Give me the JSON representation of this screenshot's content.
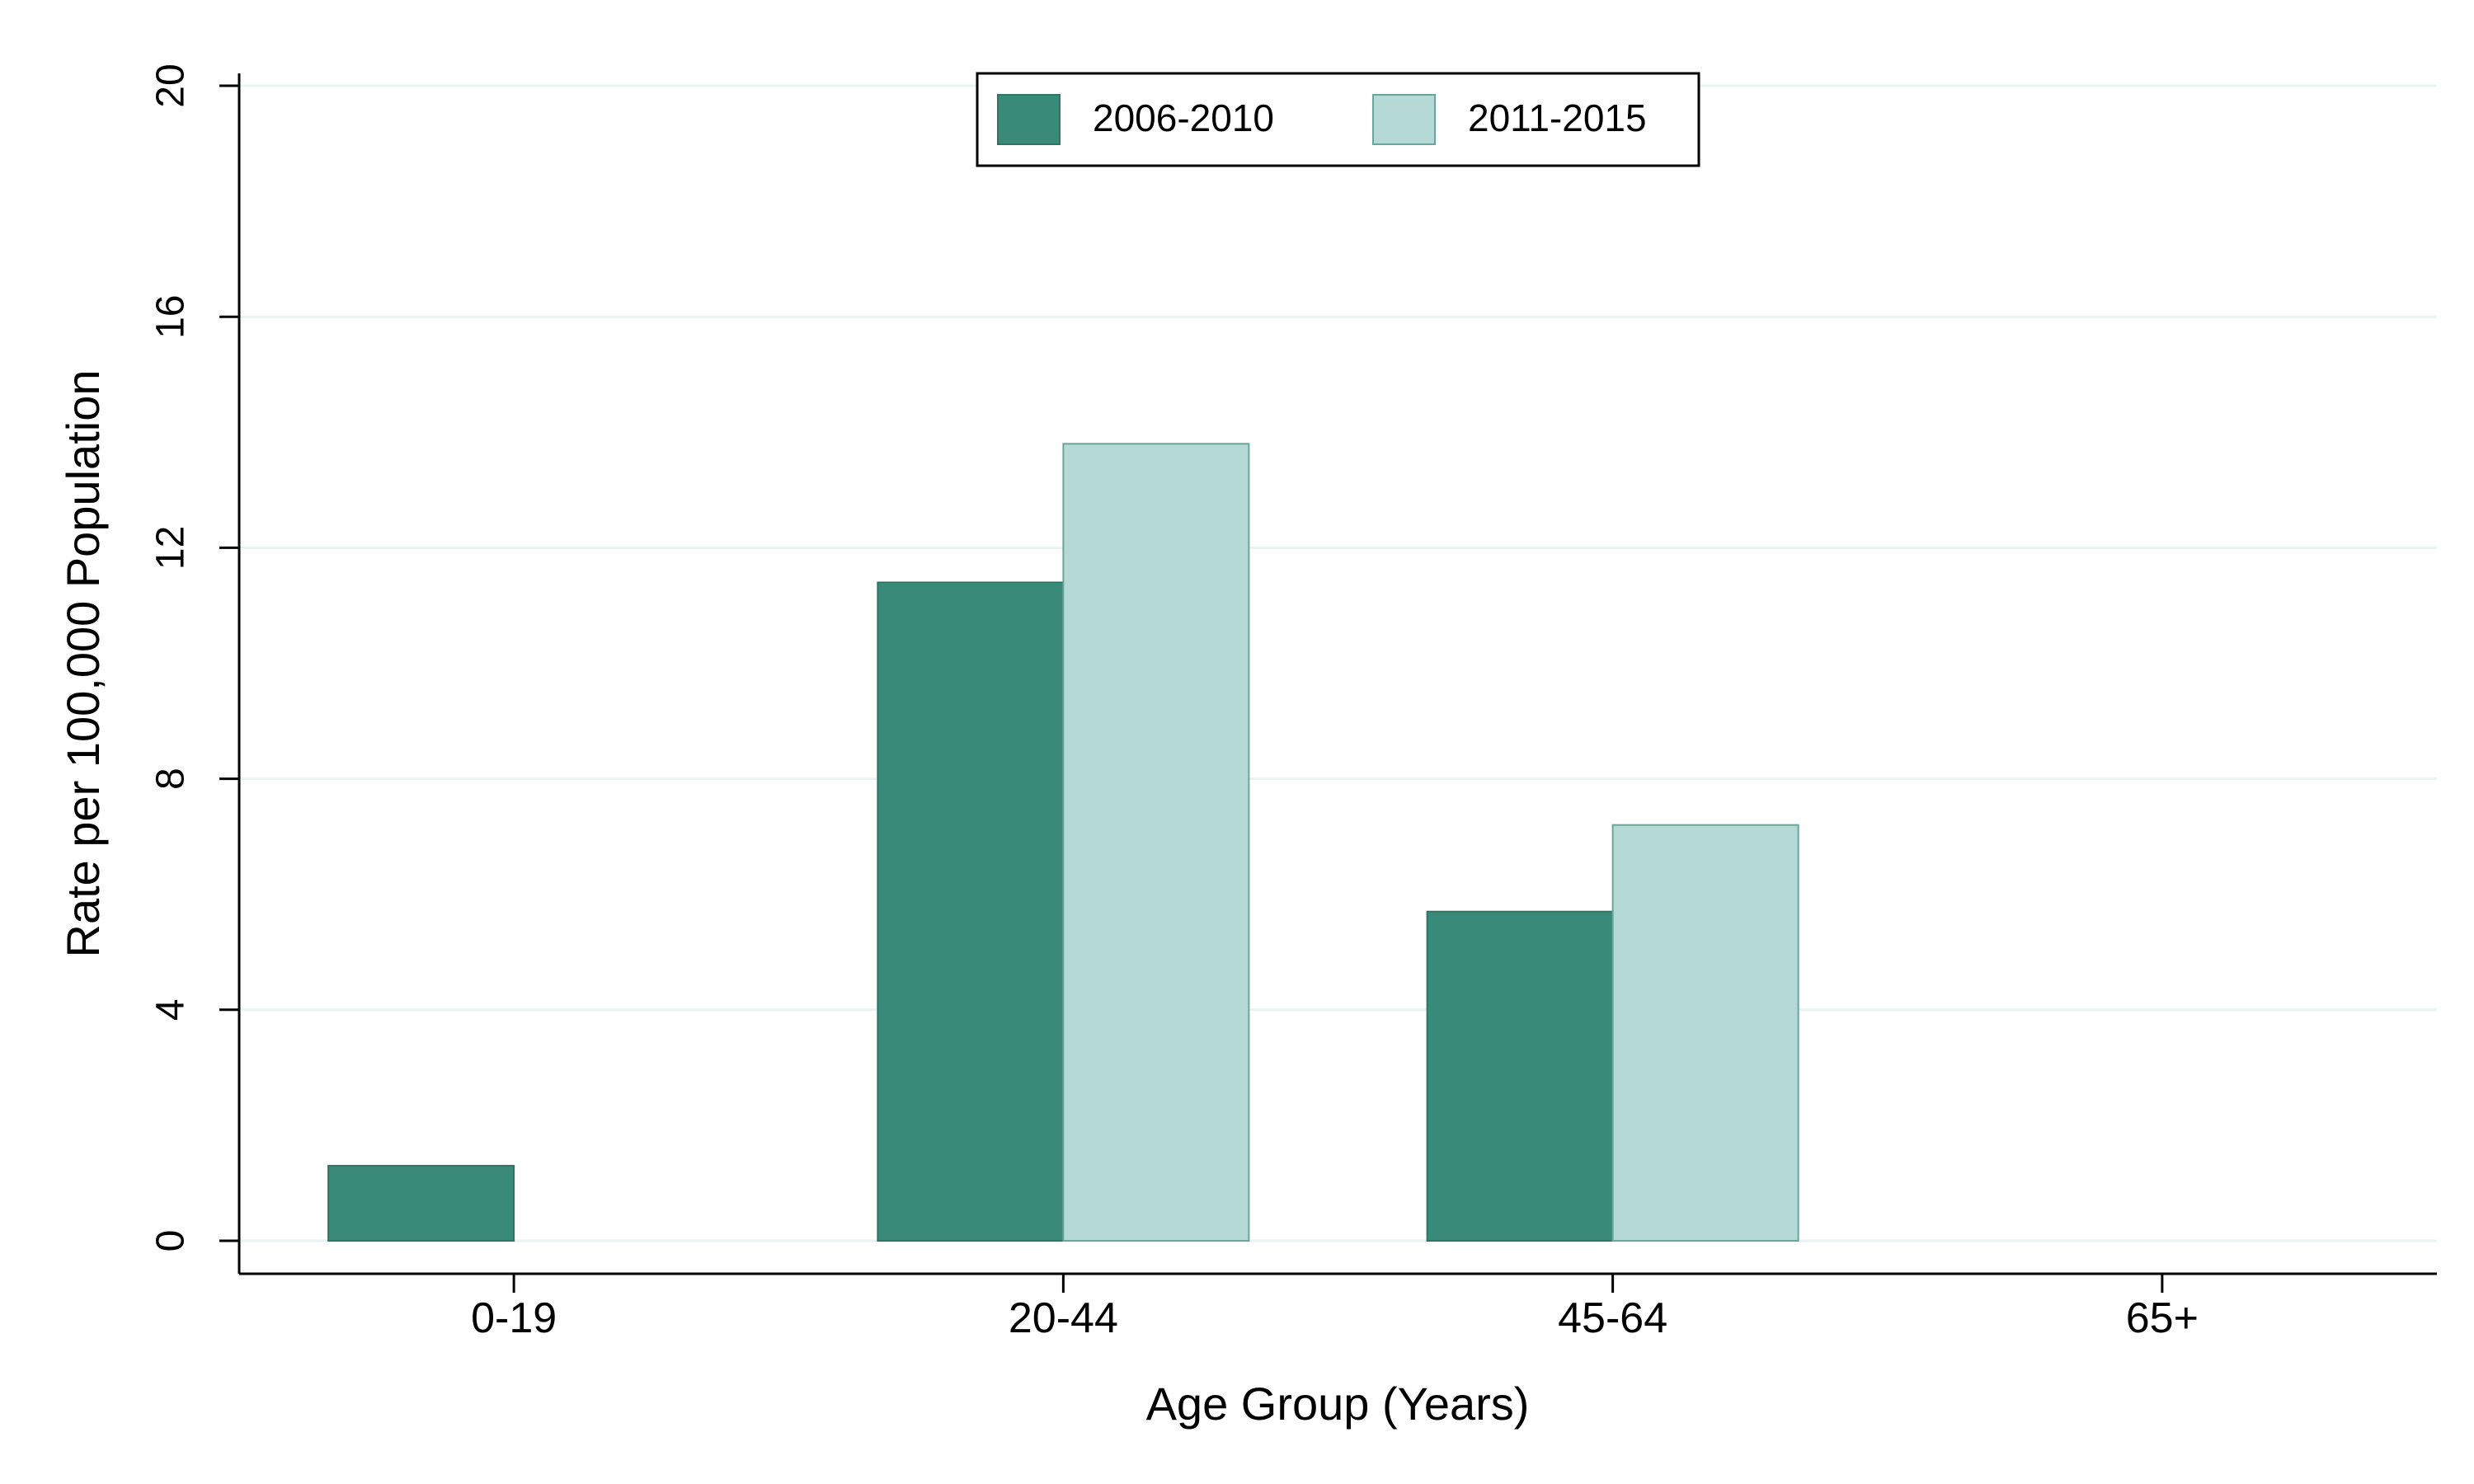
{
  "chart_data": {
    "type": "bar",
    "title": "",
    "xlabel": "Age Group (Years)",
    "ylabel": "Rate per 100,000 Population",
    "categories": [
      "0-19",
      "20-44",
      "45-64",
      "65+"
    ],
    "series": [
      {
        "name": "2006-2010",
        "values": [
          1.3,
          11.4,
          5.7,
          0
        ],
        "color": "#3a8a7a"
      },
      {
        "name": "2011-2015",
        "values": [
          0,
          13.8,
          7.2,
          0
        ],
        "color": "#b5dad6"
      }
    ],
    "ylim": [
      0,
      20
    ],
    "yticks": [
      0,
      4,
      8,
      12,
      16,
      20
    ],
    "ytick_labels": [
      "0",
      "4",
      "8",
      "12",
      "16",
      "20"
    ],
    "grid": true,
    "gridline_color": "#eaf2f2",
    "legend_position": "top-center"
  }
}
